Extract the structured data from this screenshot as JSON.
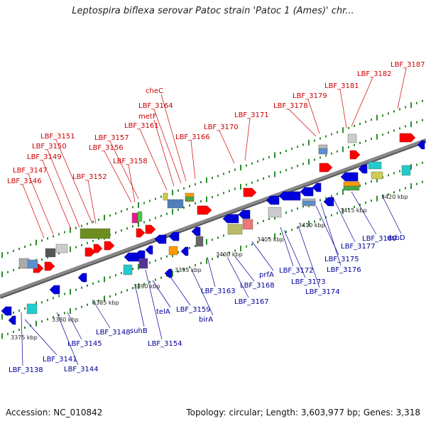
{
  "title": "Leptospira biflexa serovar Patoc strain 'Patoc 1 (Ames)' chr...",
  "footer": {
    "accession": "Accession: NC_010842",
    "summary": "Topology: circular; Length: 3,603,977 bp; Genes: 3,318"
  },
  "colors": {
    "forward_strand": "#ff0000",
    "reverse_strand": "#0000dd",
    "forward_label": "#cc0000",
    "reverse_label": "#000099",
    "backbone": "#888888",
    "dots": "#2e8b2e"
  },
  "kbp_ticks": [
    "3375 kbp",
    "3380 kbp",
    "3385 kbp",
    "3390 kbp",
    "3395 kbp",
    "3400 kbp",
    "3405 kbp",
    "3410 kbp",
    "3415 kbp",
    "3420 kbp"
  ],
  "forward_labels": [
    "LBF_3146",
    "LBF_3147",
    "LBF_3149",
    "LBF_3150",
    "LBF_3151",
    "LBF_3152",
    "LBF_3156",
    "LBF_3157",
    "LBF_3158",
    "LBF_3161",
    "metF",
    "LBF_3164",
    "cheC",
    "LBF_3166",
    "LBF_3170",
    "LBF_3171",
    "LBF_3178",
    "LBF_3179",
    "LBF_3181",
    "LBF_3182",
    "LBF_3187"
  ],
  "reverse_labels": [
    "LBF_3138",
    "LBF_3141",
    "LBF_3144",
    "LBF_3145",
    "LBF_3148",
    "suhB",
    "LBF_3154",
    "telA",
    "LBF_3159",
    "birA",
    "LBF_3163",
    "LBF_3167",
    "LBF_3168",
    "prfA",
    "LBF_3172",
    "LBF_3173",
    "LBF_3174",
    "LBF_3175",
    "LBF_3176",
    "LBF_3177",
    "LBF_3180",
    "dsbD"
  ]
}
